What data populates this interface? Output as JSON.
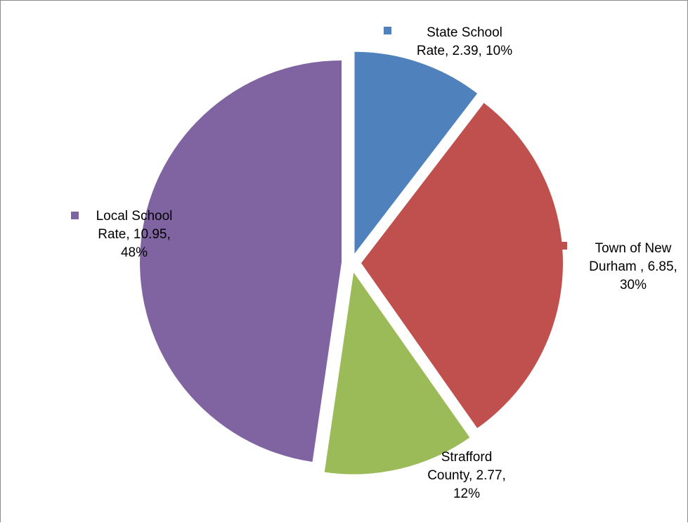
{
  "chart_data": {
    "type": "pie",
    "exploded": true,
    "slices": [
      {
        "category": "State School Rate",
        "value": 2.39,
        "percent": "10%",
        "color": "#4f81bd",
        "label_lines": [
          "State School",
          "Rate, 2.39, 10%"
        ]
      },
      {
        "category": "Town of New Durham",
        "value": 6.85,
        "percent": "30%",
        "color": "#c0504d",
        "label_lines": [
          "Town of New",
          "Durham , 6.85,",
          "30%"
        ]
      },
      {
        "category": "Strafford County",
        "value": 2.77,
        "percent": "12%",
        "color": "#9bbb59",
        "label_lines": [
          "Strafford",
          "County, 2.77,",
          "12%"
        ]
      },
      {
        "category": "Local School Rate",
        "value": 10.95,
        "percent": "48%",
        "color": "#8064a2",
        "label_lines": [
          "Local School",
          "Rate, 10.95,",
          "48%"
        ]
      }
    ]
  }
}
